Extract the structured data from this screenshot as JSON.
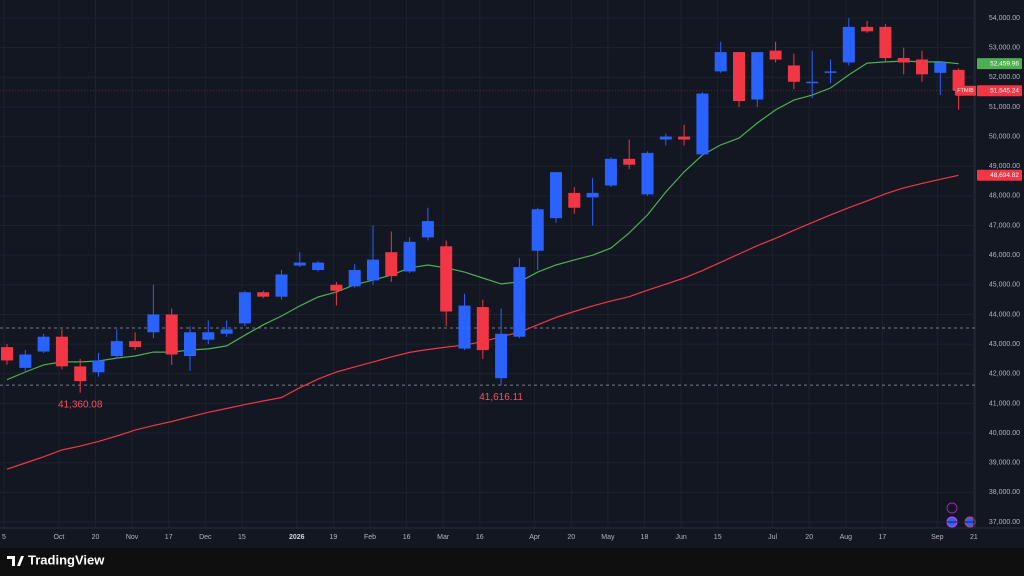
{
  "brand": "TradingView",
  "chart_data": {
    "type": "candlestick",
    "symbol": "FTMIB",
    "up_color": "#2962ff",
    "down_color": "#f23645",
    "open": [
      42900,
      42200,
      42750,
      43250,
      42250,
      42050,
      42600,
      43100,
      43400,
      44000,
      42600,
      43150,
      43350,
      43700,
      44750,
      44600,
      45650,
      45500,
      45000,
      44950,
      45150,
      46100,
      45450,
      46600,
      46300,
      42850,
      44250,
      41850,
      43250,
      46150,
      47250,
      48100,
      47950,
      48350,
      49250,
      48050,
      49900,
      50000,
      49400,
      52200,
      52850,
      51250,
      52900,
      52400,
      51800,
      52150,
      52500,
      53700,
      53700,
      52650,
      52600,
      52150,
      52250
    ],
    "high": [
      43000,
      42800,
      43350,
      43500,
      42500,
      42700,
      43500,
      43400,
      45000,
      44200,
      43600,
      43800,
      43800,
      44800,
      44800,
      45500,
      46100,
      45800,
      45100,
      45700,
      47000,
      46800,
      46600,
      47600,
      46500,
      44700,
      44500,
      44200,
      45900,
      47600,
      48800,
      48300,
      48600,
      49300,
      49900,
      49500,
      50100,
      50400,
      51500,
      53200,
      52850,
      52850,
      53200,
      52800,
      52900,
      52600,
      54000,
      53900,
      53800,
      53000,
      52900,
      52550,
      52300
    ],
    "low": [
      42300,
      42100,
      42700,
      42150,
      41360.08,
      41900,
      42500,
      42800,
      43200,
      42300,
      42100,
      43000,
      43250,
      43600,
      44550,
      44500,
      45600,
      45450,
      44300,
      44900,
      45000,
      45100,
      45400,
      46500,
      43600,
      42800,
      42500,
      41616.11,
      43200,
      45500,
      47100,
      47400,
      47000,
      48300,
      48900,
      48000,
      49700,
      49700,
      49350,
      52150,
      51000,
      51000,
      52500,
      51600,
      51300,
      51800,
      52400,
      53500,
      52500,
      52100,
      51850,
      51400,
      50900
    ],
    "close": [
      42450,
      42650,
      43250,
      42250,
      41750,
      42450,
      43100,
      42900,
      44000,
      42650,
      43400,
      43400,
      43500,
      44750,
      44600,
      45350,
      45750,
      45750,
      44800,
      45500,
      45850,
      45300,
      46450,
      47150,
      44100,
      44300,
      42800,
      43350,
      45600,
      47550,
      48800,
      47600,
      48100,
      49250,
      49050,
      49450,
      50000,
      49900,
      51450,
      52850,
      51200,
      52850,
      52600,
      51850,
      51850,
      52200,
      53700,
      53550,
      52650,
      52500,
      52100,
      52500,
      51545.24
    ],
    "close_label": "51,545.24",
    "annotations": [
      {
        "text": "41,360.08",
        "value": 41360.08,
        "candle": 4
      },
      {
        "text": "41,616.11",
        "value": 41616.11,
        "candle": 27
      }
    ],
    "hlines": [
      43545,
      41616.11
    ],
    "series": [
      {
        "color": "#4caf50",
        "last_label": "52,459.96",
        "values": [
          41800,
          42060,
          42300,
          42400,
          42400,
          42430,
          42530,
          42600,
          42730,
          42730,
          42800,
          42840,
          42940,
          43300,
          43650,
          43950,
          44290,
          44590,
          44760,
          45000,
          45160,
          45330,
          45570,
          45670,
          45570,
          45430,
          45230,
          45030,
          45100,
          45430,
          45670,
          45840,
          46000,
          46240,
          46750,
          47360,
          48130,
          48810,
          49380,
          49720,
          49950,
          50460,
          50900,
          51230,
          51400,
          51640,
          52080,
          52480,
          52520,
          52550,
          52520,
          52520,
          52459.96
        ]
      },
      {
        "color": "#f23645",
        "last_label": "48,694.82",
        "values": [
          38780,
          38990,
          39200,
          39430,
          39560,
          39720,
          39900,
          40100,
          40250,
          40390,
          40550,
          40700,
          40830,
          40960,
          41080,
          41200,
          41530,
          41820,
          42060,
          42230,
          42400,
          42570,
          42720,
          42820,
          42900,
          42970,
          43080,
          43250,
          43400,
          43650,
          43900,
          44100,
          44290,
          44450,
          44600,
          44820,
          45020,
          45230,
          45480,
          45760,
          46040,
          46320,
          46570,
          46840,
          47100,
          47360,
          47600,
          47830,
          48070,
          48270,
          48420,
          48560,
          48694.82
        ]
      }
    ],
    "ylim": [
      37000,
      54000
    ],
    "yticks": [
      {
        "value": 37000,
        "label": "37,000.00"
      },
      {
        "value": 38000,
        "label": "38,000.00"
      },
      {
        "value": 39000,
        "label": "39,000.00"
      },
      {
        "value": 40000,
        "label": "40,000.00"
      },
      {
        "value": 41000,
        "label": "41,000.00"
      },
      {
        "value": 42000,
        "label": "42,000.00"
      },
      {
        "value": 43000,
        "label": "43,000.00"
      },
      {
        "value": 44000,
        "label": "44,000.00"
      },
      {
        "value": 45000,
        "label": "45,000.00"
      },
      {
        "value": 46000,
        "label": "46,000.00"
      },
      {
        "value": 47000,
        "label": "47,000.00"
      },
      {
        "value": 48000,
        "label": "48,000.00"
      },
      {
        "value": 49000,
        "label": "49,000.00"
      },
      {
        "value": 50000,
        "label": "50,000.00"
      },
      {
        "value": 51000,
        "label": "51,000.00"
      },
      {
        "value": 52000,
        "label": "52,000.00"
      },
      {
        "value": 53000,
        "label": "53,000.00"
      },
      {
        "value": 54000,
        "label": "54,000.00"
      }
    ],
    "xticks": [
      {
        "value": 0,
        "label": "5"
      },
      {
        "value": 3,
        "label": "Oct"
      },
      {
        "value": 5,
        "label": "20"
      },
      {
        "value": 7,
        "label": "Nov"
      },
      {
        "value": 9,
        "label": "17"
      },
      {
        "value": 11,
        "label": "Dec"
      },
      {
        "value": 13,
        "label": "15"
      },
      {
        "value": 16,
        "label": "2026"
      },
      {
        "value": 18,
        "label": "19"
      },
      {
        "value": 20,
        "label": "Feb"
      },
      {
        "value": 22,
        "label": "16"
      },
      {
        "value": 24,
        "label": "Mar"
      },
      {
        "value": 26,
        "label": "16"
      },
      {
        "value": 29,
        "label": "Apr"
      },
      {
        "value": 31,
        "label": "20"
      },
      {
        "value": 33,
        "label": "May"
      },
      {
        "value": 35,
        "label": "18"
      },
      {
        "value": 37,
        "label": "Jun"
      },
      {
        "value": 39,
        "label": "15"
      },
      {
        "value": 42,
        "label": "Jul"
      },
      {
        "value": 44,
        "label": "20"
      },
      {
        "value": 46,
        "label": "Aug"
      },
      {
        "value": 48,
        "label": "17"
      },
      {
        "value": 51,
        "label": "Sep"
      },
      {
        "value": 53,
        "label": "21"
      }
    ],
    "grid": true
  }
}
